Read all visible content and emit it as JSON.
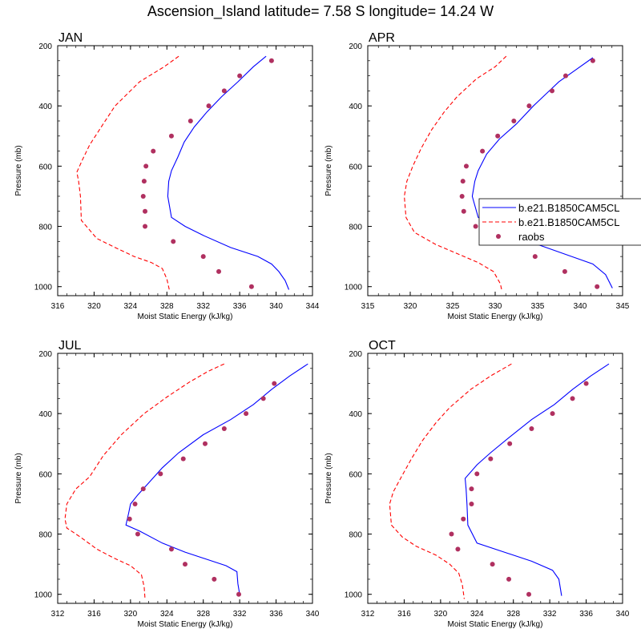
{
  "title": "Ascension_Island  latitude= 7.58 S longitude= 14.24 W",
  "colors": {
    "model1": "#0000ff",
    "model2": "#ff0000",
    "raobs": "#b03060"
  },
  "legend": {
    "entries": [
      {
        "label": "b.e21.B1850CAM5CL",
        "style": "solid",
        "color": "#0000ff"
      },
      {
        "label": "b.e21.B1850CAM5CL",
        "style": "dashed",
        "color": "#ff0000"
      },
      {
        "label": "raobs",
        "style": "marker",
        "color": "#b03060"
      }
    ]
  },
  "chart_data": [
    {
      "type": "line",
      "month": "JAN",
      "xlabel": "Moist Static Energy (kJ/kg)",
      "ylabel": "Pressure (mb)",
      "xlim": [
        316,
        344
      ],
      "ylim": [
        200,
        1030
      ],
      "xticks": [
        316,
        320,
        324,
        328,
        332,
        336,
        340,
        344
      ],
      "yticks": [
        200,
        400,
        600,
        800,
        1000
      ],
      "series": [
        {
          "name": "b.e21.B1850CAM5CL",
          "style": "solid",
          "points": [
            [
              338.9,
              235
            ],
            [
              337.5,
              270
            ],
            [
              335.8,
              320
            ],
            [
              334,
              370
            ],
            [
              332.4,
              420
            ],
            [
              331,
              470
            ],
            [
              329.9,
              520
            ],
            [
              329.2,
              570
            ],
            [
              328.5,
              615
            ],
            [
              328.2,
              650
            ],
            [
              328.1,
              700
            ],
            [
              328.5,
              770
            ],
            [
              330,
              800
            ],
            [
              332,
              830
            ],
            [
              335,
              870
            ],
            [
              338,
              900
            ],
            [
              339.5,
              925
            ],
            [
              340.3,
              950
            ],
            [
              341,
              980
            ],
            [
              341.4,
              1010
            ]
          ]
        },
        {
          "name": "b.e21.B1850CAM5CL",
          "style": "dashed",
          "points": [
            [
              329.3,
              235
            ],
            [
              327.7,
              270
            ],
            [
              325,
              320
            ],
            [
              322.3,
              400
            ],
            [
              321,
              460
            ],
            [
              319.5,
              530
            ],
            [
              318.7,
              580
            ],
            [
              318.1,
              620
            ],
            [
              318.3,
              650
            ],
            [
              318.5,
              700
            ],
            [
              318.6,
              780
            ],
            [
              320.3,
              840
            ],
            [
              322.3,
              870
            ],
            [
              324.4,
              900
            ],
            [
              326.3,
              920
            ],
            [
              327.5,
              940
            ],
            [
              328,
              975
            ],
            [
              328.3,
              1015
            ]
          ]
        },
        {
          "name": "raobs",
          "style": "marker",
          "points": [
            [
              339.5,
              250
            ],
            [
              336,
              300
            ],
            [
              334.3,
              350
            ],
            [
              332.6,
              400
            ],
            [
              330.6,
              450
            ],
            [
              328.5,
              500
            ],
            [
              326.5,
              550
            ],
            [
              325.7,
              600
            ],
            [
              325.5,
              650
            ],
            [
              325.4,
              700
            ],
            [
              325.6,
              750
            ],
            [
              325.6,
              800
            ],
            [
              328.7,
              850
            ],
            [
              332,
              900
            ],
            [
              333.7,
              950
            ],
            [
              337.3,
              1000
            ]
          ]
        }
      ]
    },
    {
      "type": "line",
      "month": "APR",
      "xlabel": "Moist Static Energy (kJ/kg)",
      "ylabel": "Pressure (mb)",
      "xlim": [
        315,
        345
      ],
      "ylim": [
        200,
        1030
      ],
      "xticks": [
        315,
        320,
        325,
        330,
        335,
        340,
        345
      ],
      "yticks": [
        200,
        400,
        600,
        800,
        1000
      ],
      "series": [
        {
          "name": "b.e21.B1850CAM5CL",
          "style": "solid",
          "points": [
            [
              341.5,
              240
            ],
            [
              339.5,
              280
            ],
            [
              337.5,
              320
            ],
            [
              336,
              360
            ],
            [
              334.5,
              400
            ],
            [
              332.5,
              460
            ],
            [
              330.5,
              510
            ],
            [
              329,
              560
            ],
            [
              328,
              615
            ],
            [
              327.6,
              650
            ],
            [
              327.3,
              700
            ],
            [
              328,
              770
            ],
            [
              330,
              800
            ],
            [
              333,
              840
            ],
            [
              336,
              870
            ],
            [
              339,
              900
            ],
            [
              341.5,
              925
            ],
            [
              343,
              960
            ],
            [
              343.8,
              1005
            ]
          ]
        },
        {
          "name": "b.e21.B1850CAM5CL",
          "style": "dashed",
          "points": [
            [
              331.3,
              235
            ],
            [
              330,
              270
            ],
            [
              327.8,
              310
            ],
            [
              325.5,
              370
            ],
            [
              324,
              420
            ],
            [
              322.5,
              480
            ],
            [
              321.3,
              540
            ],
            [
              320.3,
              600
            ],
            [
              319.6,
              650
            ],
            [
              319.3,
              700
            ],
            [
              319.5,
              770
            ],
            [
              320.5,
              820
            ],
            [
              323,
              860
            ],
            [
              325.5,
              890
            ],
            [
              328,
              920
            ],
            [
              329.8,
              950
            ],
            [
              330.6,
              990
            ],
            [
              330.8,
              1015
            ]
          ]
        },
        {
          "name": "raobs",
          "style": "marker",
          "points": [
            [
              341.5,
              250
            ],
            [
              338.3,
              300
            ],
            [
              336.7,
              350
            ],
            [
              334,
              400
            ],
            [
              332.2,
              450
            ],
            [
              330.3,
              500
            ],
            [
              328.5,
              550
            ],
            [
              326.6,
              600
            ],
            [
              326.2,
              650
            ],
            [
              326.1,
              700
            ],
            [
              326.3,
              750
            ],
            [
              327.7,
              800
            ],
            [
              330.5,
              825
            ],
            [
              331.1,
              850
            ],
            [
              334.7,
              900
            ],
            [
              338.2,
              950
            ],
            [
              342,
              1000
            ]
          ]
        }
      ]
    },
    {
      "type": "line",
      "month": "JUL",
      "xlabel": "Moist Static Energy (kJ/kg)",
      "ylabel": "Pressure (mb)",
      "xlim": [
        312,
        340
      ],
      "ylim": [
        200,
        1030
      ],
      "xticks": [
        312,
        316,
        320,
        324,
        328,
        332,
        336,
        340
      ],
      "yticks": [
        200,
        400,
        600,
        800,
        1000
      ],
      "series": [
        {
          "name": "b.e21.B1850CAM5CL",
          "style": "solid",
          "points": [
            [
              339.5,
              235
            ],
            [
              337.5,
              275
            ],
            [
              335.5,
              320
            ],
            [
              333.5,
              370
            ],
            [
              331,
              420
            ],
            [
              328,
              470
            ],
            [
              325.3,
              530
            ],
            [
              323.5,
              580
            ],
            [
              322,
              630
            ],
            [
              320.8,
              670
            ],
            [
              320,
              700
            ],
            [
              319.8,
              730
            ],
            [
              319.5,
              770
            ],
            [
              321,
              790
            ],
            [
              323.5,
              830
            ],
            [
              326,
              860
            ],
            [
              328.5,
              885
            ],
            [
              330.5,
              905
            ],
            [
              331.7,
              925
            ],
            [
              331.8,
              965
            ],
            [
              332,
              1000
            ]
          ]
        },
        {
          "name": "b.e21.B1850CAM5CL",
          "style": "dashed",
          "points": [
            [
              330.3,
              235
            ],
            [
              328.5,
              260
            ],
            [
              326.5,
              295
            ],
            [
              324,
              345
            ],
            [
              321.5,
              400
            ],
            [
              319,
              470
            ],
            [
              317,
              540
            ],
            [
              315.5,
              610
            ],
            [
              314,
              650
            ],
            [
              313,
              700
            ],
            [
              312.8,
              750
            ],
            [
              313,
              780
            ],
            [
              314.5,
              810
            ],
            [
              316.3,
              850
            ],
            [
              318.2,
              880
            ],
            [
              320,
              905
            ],
            [
              321.2,
              935
            ],
            [
              321.5,
              975
            ],
            [
              321.6,
              1015
            ]
          ]
        },
        {
          "name": "raobs",
          "style": "marker",
          "points": [
            [
              335.8,
              300
            ],
            [
              334.6,
              350
            ],
            [
              332.7,
              400
            ],
            [
              330.3,
              450
            ],
            [
              328.2,
              500
            ],
            [
              325.8,
              550
            ],
            [
              323.3,
              600
            ],
            [
              321.4,
              650
            ],
            [
              320.5,
              700
            ],
            [
              319.9,
              750
            ],
            [
              320.8,
              800
            ],
            [
              324.5,
              850
            ],
            [
              326,
              900
            ],
            [
              329.2,
              950
            ],
            [
              331.9,
              1000
            ]
          ]
        }
      ]
    },
    {
      "type": "line",
      "month": "OCT",
      "xlabel": "Moist Static Energy (kJ/kg)",
      "ylabel": "Pressure (mb)",
      "xlim": [
        312,
        340
      ],
      "ylim": [
        200,
        1030
      ],
      "xticks": [
        312,
        316,
        320,
        324,
        328,
        332,
        336,
        340
      ],
      "yticks": [
        200,
        400,
        600,
        800,
        1000
      ],
      "series": [
        {
          "name": "b.e21.B1850CAM5CL",
          "style": "solid",
          "points": [
            [
              338.5,
              235
            ],
            [
              336.5,
              275
            ],
            [
              334.5,
              320
            ],
            [
              332.5,
              370
            ],
            [
              330,
              420
            ],
            [
              327.5,
              480
            ],
            [
              325.5,
              530
            ],
            [
              324,
              570
            ],
            [
              322.7,
              615
            ],
            [
              322.8,
              650
            ],
            [
              322.9,
              700
            ],
            [
              323,
              770
            ],
            [
              324,
              830
            ],
            [
              327,
              860
            ],
            [
              330,
              890
            ],
            [
              332.3,
              920
            ],
            [
              333,
              950
            ],
            [
              333.3,
              1005
            ]
          ]
        },
        {
          "name": "b.e21.B1850CAM5CL",
          "style": "dashed",
          "points": [
            [
              327.8,
              235
            ],
            [
              325.5,
              275
            ],
            [
              323.3,
              320
            ],
            [
              321,
              380
            ],
            [
              319.5,
              430
            ],
            [
              318,
              490
            ],
            [
              316.8,
              550
            ],
            [
              315.7,
              610
            ],
            [
              314.8,
              660
            ],
            [
              314.4,
              700
            ],
            [
              314.6,
              770
            ],
            [
              315.8,
              810
            ],
            [
              317.3,
              840
            ],
            [
              319.5,
              870
            ],
            [
              321,
              900
            ],
            [
              322,
              930
            ],
            [
              322.4,
              970
            ],
            [
              322.6,
              1015
            ]
          ]
        },
        {
          "name": "raobs",
          "style": "marker",
          "points": [
            [
              336,
              300
            ],
            [
              334.5,
              350
            ],
            [
              332.3,
              400
            ],
            [
              330,
              450
            ],
            [
              327.6,
              500
            ],
            [
              325.5,
              550
            ],
            [
              324,
              600
            ],
            [
              323.4,
              650
            ],
            [
              323.4,
              700
            ],
            [
              322.5,
              750
            ],
            [
              321.2,
              800
            ],
            [
              321.9,
              850
            ],
            [
              325.7,
              900
            ],
            [
              327.5,
              950
            ],
            [
              329.7,
              1000
            ]
          ]
        }
      ]
    }
  ]
}
